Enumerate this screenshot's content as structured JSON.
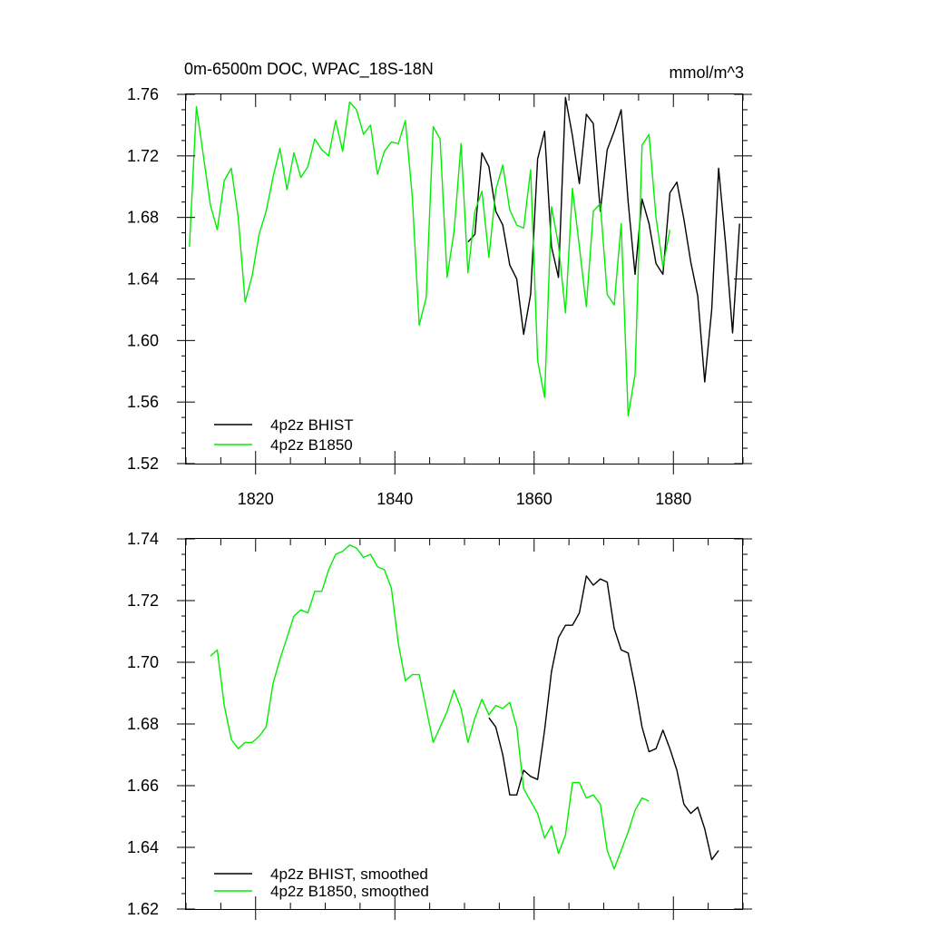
{
  "chart_data": [
    {
      "type": "line",
      "title": "0m-6500m DOC, WPAC_18S-18N",
      "units": "mmol/m^3",
      "xlim": [
        1810,
        1890
      ],
      "ylim": [
        1.52,
        1.76
      ],
      "xticks": [
        1820,
        1840,
        1860,
        1880
      ],
      "xtick_labels": [
        "1820",
        "1840",
        "1860",
        "1880"
      ],
      "yticks": [
        1.52,
        1.56,
        1.6,
        1.64,
        1.68,
        1.72,
        1.76
      ],
      "ytick_labels": [
        "1.52",
        "1.56",
        "1.60",
        "1.64",
        "1.68",
        "1.72",
        "1.76"
      ],
      "grid": false,
      "legend_position": "bottom-left",
      "series": [
        {
          "name": "4p2z BHIST",
          "color": "#000000",
          "x": [
            1850.5,
            1851.5,
            1852.5,
            1853.5,
            1854.5,
            1855.5,
            1856.5,
            1857.5,
            1858.5,
            1859.5,
            1860.5,
            1861.5,
            1862.5,
            1863.5,
            1864.5,
            1865.5,
            1866.5,
            1867.5,
            1868.5,
            1869.5,
            1870.5,
            1871.5,
            1872.5,
            1873.5,
            1874.5,
            1875.5,
            1876.5,
            1877.5,
            1878.5,
            1879.5,
            1880.5,
            1881.5,
            1882.5,
            1883.5,
            1884.5,
            1885.5,
            1886.5,
            1887.5,
            1888.5,
            1889.5
          ],
          "values": [
            1.664,
            1.669,
            1.722,
            1.713,
            1.684,
            1.675,
            1.649,
            1.64,
            1.604,
            1.63,
            1.718,
            1.736,
            1.661,
            1.641,
            1.758,
            1.733,
            1.702,
            1.747,
            1.741,
            1.684,
            1.724,
            1.736,
            1.75,
            1.69,
            1.643,
            1.692,
            1.676,
            1.65,
            1.643,
            1.696,
            1.703,
            1.679,
            1.651,
            1.629,
            1.573,
            1.62,
            1.712,
            1.663,
            1.605,
            1.676
          ]
        },
        {
          "name": "4p2z B1850",
          "color": "#00ee00",
          "x": [
            1810.5,
            1811.5,
            1812.5,
            1813.5,
            1814.5,
            1815.5,
            1816.5,
            1817.5,
            1818.5,
            1819.5,
            1820.5,
            1821.5,
            1822.5,
            1823.5,
            1824.5,
            1825.5,
            1826.5,
            1827.5,
            1828.5,
            1829.5,
            1830.5,
            1831.5,
            1832.5,
            1833.5,
            1834.5,
            1835.5,
            1836.5,
            1837.5,
            1838.5,
            1839.5,
            1840.5,
            1841.5,
            1842.5,
            1843.5,
            1844.5,
            1845.5,
            1846.5,
            1847.5,
            1848.5,
            1849.5,
            1850.5,
            1851.5,
            1852.5,
            1853.5,
            1854.5,
            1855.5,
            1856.5,
            1857.5,
            1858.5,
            1859.5,
            1860.5,
            1861.5,
            1862.5,
            1863.5,
            1864.5,
            1865.5,
            1866.5,
            1867.5,
            1868.5,
            1869.5,
            1870.5,
            1871.5,
            1872.5,
            1873.5,
            1874.5,
            1875.5,
            1876.5,
            1877.5,
            1878.5,
            1879.5
          ],
          "values": [
            1.661,
            1.752,
            1.72,
            1.688,
            1.672,
            1.704,
            1.712,
            1.68,
            1.625,
            1.642,
            1.669,
            1.684,
            1.706,
            1.725,
            1.698,
            1.722,
            1.706,
            1.713,
            1.731,
            1.724,
            1.72,
            1.743,
            1.723,
            1.755,
            1.75,
            1.734,
            1.74,
            1.708,
            1.723,
            1.729,
            1.728,
            1.743,
            1.694,
            1.61,
            1.628,
            1.739,
            1.731,
            1.641,
            1.671,
            1.728,
            1.644,
            1.684,
            1.697,
            1.654,
            1.698,
            1.714,
            1.685,
            1.675,
            1.673,
            1.711,
            1.587,
            1.563,
            1.687,
            1.662,
            1.618,
            1.699,
            1.661,
            1.622,
            1.684,
            1.689,
            1.63,
            1.623,
            1.676,
            1.551,
            1.578,
            1.727,
            1.734,
            1.68,
            1.648,
            1.672
          ]
        }
      ]
    },
    {
      "type": "line",
      "xlim": [
        1810,
        1890
      ],
      "ylim": [
        1.62,
        1.74
      ],
      "xticks": [
        1820,
        1840,
        1860,
        1880
      ],
      "yticks": [
        1.62,
        1.64,
        1.66,
        1.68,
        1.7,
        1.72,
        1.74
      ],
      "ytick_labels": [
        "1.62",
        "1.64",
        "1.66",
        "1.68",
        "1.70",
        "1.72",
        "1.74"
      ],
      "grid": false,
      "legend_position": "bottom-left",
      "series": [
        {
          "name": "4p2z BHIST, smoothed",
          "color": "#000000",
          "x": [
            1853.5,
            1854.5,
            1855.5,
            1856.5,
            1857.5,
            1858.5,
            1859.5,
            1860.5,
            1861.5,
            1862.5,
            1863.5,
            1864.5,
            1865.5,
            1866.5,
            1867.5,
            1868.5,
            1869.5,
            1870.5,
            1871.5,
            1872.5,
            1873.5,
            1874.5,
            1875.5,
            1876.5,
            1877.5,
            1878.5,
            1879.5,
            1880.5,
            1881.5,
            1882.5,
            1883.5,
            1884.5,
            1885.5,
            1886.5
          ],
          "values": [
            1.682,
            1.679,
            1.67,
            1.657,
            1.657,
            1.665,
            1.663,
            1.662,
            1.678,
            1.697,
            1.708,
            1.712,
            1.712,
            1.716,
            1.728,
            1.725,
            1.727,
            1.726,
            1.711,
            1.704,
            1.703,
            1.692,
            1.679,
            1.671,
            1.672,
            1.678,
            1.672,
            1.665,
            1.654,
            1.651,
            1.653,
            1.646,
            1.636,
            1.639
          ]
        },
        {
          "name": "4p2z B1850, smoothed",
          "color": "#00ee00",
          "x": [
            1813.5,
            1814.5,
            1815.5,
            1816.5,
            1817.5,
            1818.5,
            1819.5,
            1820.5,
            1821.5,
            1822.5,
            1823.5,
            1824.5,
            1825.5,
            1826.5,
            1827.5,
            1828.5,
            1829.5,
            1830.5,
            1831.5,
            1832.5,
            1833.5,
            1834.5,
            1835.5,
            1836.5,
            1837.5,
            1838.5,
            1839.5,
            1840.5,
            1841.5,
            1842.5,
            1843.5,
            1844.5,
            1845.5,
            1846.5,
            1847.5,
            1848.5,
            1849.5,
            1850.5,
            1851.5,
            1852.5,
            1853.5,
            1854.5,
            1855.5,
            1856.5,
            1857.5,
            1858.5,
            1859.5,
            1860.5,
            1861.5,
            1862.5,
            1863.5,
            1864.5,
            1865.5,
            1866.5,
            1867.5,
            1868.5,
            1869.5,
            1870.5,
            1871.5,
            1872.5,
            1873.5,
            1874.5,
            1875.5,
            1876.5
          ],
          "values": [
            1.702,
            1.704,
            1.686,
            1.675,
            1.672,
            1.674,
            1.674,
            1.676,
            1.679,
            1.693,
            1.701,
            1.708,
            1.715,
            1.717,
            1.716,
            1.723,
            1.723,
            1.73,
            1.735,
            1.736,
            1.738,
            1.737,
            1.734,
            1.735,
            1.731,
            1.73,
            1.724,
            1.706,
            1.694,
            1.696,
            1.696,
            1.685,
            1.674,
            1.679,
            1.684,
            1.691,
            1.685,
            1.674,
            1.682,
            1.688,
            1.683,
            1.686,
            1.685,
            1.687,
            1.679,
            1.659,
            1.655,
            1.651,
            1.643,
            1.647,
            1.638,
            1.644,
            1.661,
            1.661,
            1.656,
            1.657,
            1.654,
            1.639,
            1.633,
            1.639,
            1.645,
            1.652,
            1.656,
            1.655
          ]
        }
      ]
    }
  ]
}
